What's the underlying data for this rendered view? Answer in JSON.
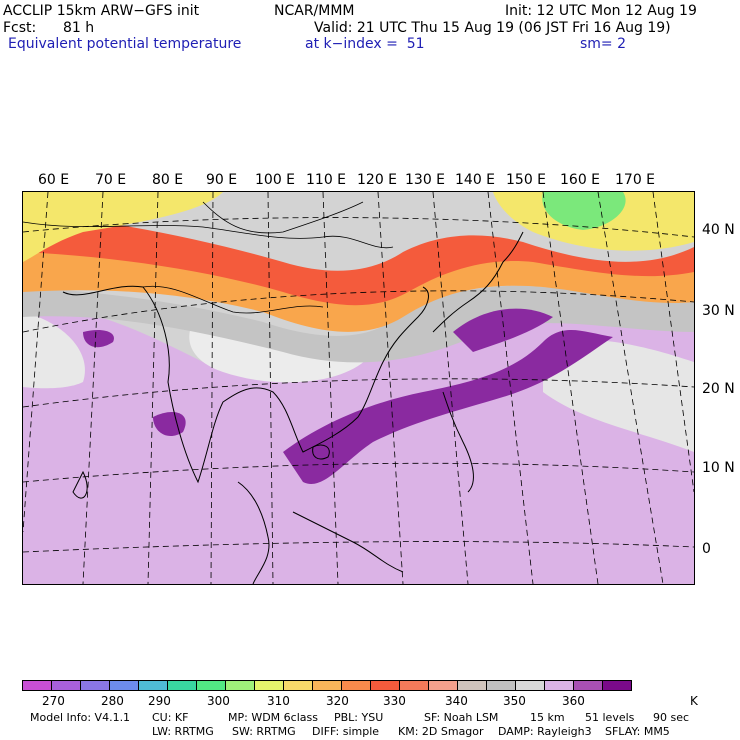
{
  "header": {
    "model": "ACCLIP 15km ARW−GFS init",
    "center": "NCAR/MMM",
    "init": "Init: 12 UTC Mon 12 Aug 19",
    "fcst_label": "Fcst:",
    "fcst_value": "81 h",
    "valid": "Valid: 21 UTC Thu 15 Aug 19 (06 JST Fri 16 Aug 19)",
    "field": "Equivalent potential temperature",
    "level": "at k−index =  51",
    "smooth": "sm= 2"
  },
  "map": {
    "lon_labels": [
      "60 E",
      "70 E",
      "80 E",
      "90 E",
      "100 E",
      "110 E",
      "120 E",
      "130 E",
      "140 E",
      "150 E",
      "160 E",
      "170 E"
    ],
    "lat_labels": [
      "40 N",
      "30 N",
      "20 N",
      "10 N",
      "0"
    ],
    "colors": {
      "hot_red": "#f45b3c",
      "orange": "#f9a64c",
      "yellow": "#f4e76b",
      "green": "#7be87b",
      "grey": "#c8c8c8",
      "light_purple": "#dbb3e6",
      "dark_purple": "#8a2aa0"
    }
  },
  "colorbar": {
    "colors": [
      "#c84fd4",
      "#a860dc",
      "#8a76e6",
      "#6d8cec",
      "#4fbcd6",
      "#39d7a0",
      "#52e884",
      "#9ff07a",
      "#e5f46c",
      "#f8da6a",
      "#f9b55a",
      "#f88a4c",
      "#f45b3c",
      "#f47a5a",
      "#f4a08c",
      "#d0c4bc",
      "#c0c0c0",
      "#d8d8d8",
      "#dbb3e6",
      "#a850b4",
      "#7a0a8a"
    ],
    "labels": [
      "270",
      "280",
      "290",
      "300",
      "310",
      "320",
      "330",
      "340",
      "350",
      "360",
      "K"
    ]
  },
  "footer": {
    "line1": [
      "Model Info: V4.1.1",
      "CU: KF",
      "MP: WDM 6class",
      "PBL: YSU",
      "SF: Noah LSM",
      "15 km",
      "51 levels",
      "90 sec"
    ],
    "line2": [
      "LW: RRTMG",
      "SW: RRTMG",
      "DIFF: simple",
      "KM: 2D Smagor",
      "DAMP: Rayleigh3",
      "SFLAY: MM5"
    ]
  }
}
